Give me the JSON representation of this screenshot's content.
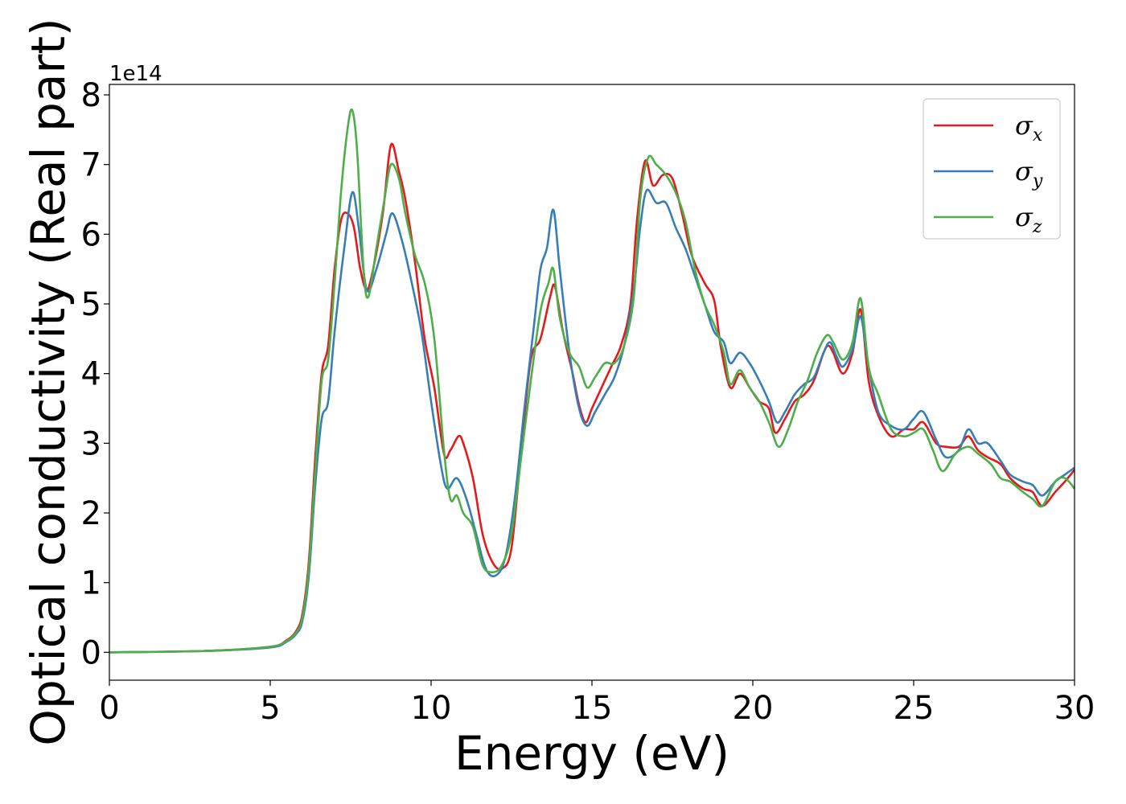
{
  "chart_data": {
    "type": "line",
    "title": "",
    "xlabel": "Energy (eV)",
    "ylabel": "Optical conductivity (Real part)",
    "y_offset_label": "1e14",
    "xlim": [
      0,
      30
    ],
    "ylim": [
      -0.4,
      8.15
    ],
    "xticks": [
      0,
      5,
      10,
      15,
      20,
      25,
      30
    ],
    "yticks": [
      0,
      1,
      2,
      3,
      4,
      5,
      6,
      7,
      8
    ],
    "grid": false,
    "legend_position": "top-right",
    "series": [
      {
        "name": "σx",
        "name_base": "σ",
        "name_sub": "x",
        "color": "#e41a1c",
        "points": [
          [
            0,
            0
          ],
          [
            3,
            0.02
          ],
          [
            5,
            0.08
          ],
          [
            5.5,
            0.17
          ],
          [
            5.8,
            0.3
          ],
          [
            6,
            0.55
          ],
          [
            6.2,
            1.3
          ],
          [
            6.4,
            2.8
          ],
          [
            6.6,
            4.0
          ],
          [
            6.8,
            4.4
          ],
          [
            7.0,
            5.5
          ],
          [
            7.2,
            6.2
          ],
          [
            7.4,
            6.3
          ],
          [
            7.6,
            6.1
          ],
          [
            7.8,
            5.5
          ],
          [
            8.0,
            5.2
          ],
          [
            8.2,
            5.5
          ],
          [
            8.5,
            6.3
          ],
          [
            8.75,
            7.28
          ],
          [
            9.0,
            6.9
          ],
          [
            9.2,
            6.5
          ],
          [
            9.5,
            5.6
          ],
          [
            9.8,
            4.5
          ],
          [
            10.1,
            3.8
          ],
          [
            10.4,
            2.85
          ],
          [
            10.6,
            2.9
          ],
          [
            10.85,
            3.1
          ],
          [
            11.0,
            3.0
          ],
          [
            11.3,
            2.5
          ],
          [
            11.6,
            1.7
          ],
          [
            11.9,
            1.3
          ],
          [
            12.2,
            1.2
          ],
          [
            12.5,
            1.5
          ],
          [
            12.8,
            2.9
          ],
          [
            13.1,
            4.2
          ],
          [
            13.4,
            4.5
          ],
          [
            13.7,
            5.1
          ],
          [
            13.85,
            5.25
          ],
          [
            14.1,
            4.6
          ],
          [
            14.4,
            4.0
          ],
          [
            14.6,
            3.55
          ],
          [
            14.8,
            3.3
          ],
          [
            15.0,
            3.5
          ],
          [
            15.3,
            3.8
          ],
          [
            15.6,
            4.1
          ],
          [
            15.9,
            4.4
          ],
          [
            16.2,
            5.0
          ],
          [
            16.4,
            6.2
          ],
          [
            16.65,
            7.05
          ],
          [
            16.9,
            6.7
          ],
          [
            17.2,
            6.85
          ],
          [
            17.5,
            6.8
          ],
          [
            17.8,
            6.3
          ],
          [
            18.1,
            5.7
          ],
          [
            18.5,
            5.3
          ],
          [
            18.8,
            5.05
          ],
          [
            19.0,
            4.4
          ],
          [
            19.3,
            3.8
          ],
          [
            19.6,
            4.0
          ],
          [
            19.9,
            3.8
          ],
          [
            20.2,
            3.6
          ],
          [
            20.5,
            3.5
          ],
          [
            20.7,
            3.15
          ],
          [
            21.0,
            3.35
          ],
          [
            21.3,
            3.6
          ],
          [
            21.6,
            3.7
          ],
          [
            21.9,
            3.9
          ],
          [
            22.2,
            4.3
          ],
          [
            22.35,
            4.4
          ],
          [
            22.5,
            4.3
          ],
          [
            22.8,
            4.0
          ],
          [
            23.1,
            4.3
          ],
          [
            23.35,
            4.92
          ],
          [
            23.6,
            3.9
          ],
          [
            23.9,
            3.4
          ],
          [
            24.3,
            3.1
          ],
          [
            24.7,
            3.2
          ],
          [
            25.0,
            3.2
          ],
          [
            25.3,
            3.3
          ],
          [
            25.7,
            3.0
          ],
          [
            26.0,
            2.95
          ],
          [
            26.4,
            2.95
          ],
          [
            26.7,
            3.1
          ],
          [
            27.0,
            2.9
          ],
          [
            27.3,
            2.8
          ],
          [
            27.7,
            2.7
          ],
          [
            28.0,
            2.5
          ],
          [
            28.4,
            2.35
          ],
          [
            28.7,
            2.3
          ],
          [
            29.0,
            2.1
          ],
          [
            29.4,
            2.3
          ],
          [
            29.7,
            2.45
          ],
          [
            30.0,
            2.62
          ]
        ]
      },
      {
        "name": "σy",
        "name_base": "σ",
        "name_sub": "y",
        "color": "#377eb8",
        "points": [
          [
            0,
            0
          ],
          [
            3,
            0.02
          ],
          [
            5,
            0.07
          ],
          [
            5.5,
            0.15
          ],
          [
            5.8,
            0.26
          ],
          [
            6,
            0.45
          ],
          [
            6.2,
            1.1
          ],
          [
            6.4,
            2.4
          ],
          [
            6.6,
            3.35
          ],
          [
            6.8,
            3.6
          ],
          [
            7.0,
            4.6
          ],
          [
            7.3,
            5.8
          ],
          [
            7.55,
            6.6
          ],
          [
            7.75,
            6.1
          ],
          [
            8.0,
            5.2
          ],
          [
            8.3,
            5.5
          ],
          [
            8.6,
            6.0
          ],
          [
            8.8,
            6.3
          ],
          [
            9.1,
            5.9
          ],
          [
            9.4,
            5.3
          ],
          [
            9.7,
            4.6
          ],
          [
            10.0,
            3.6
          ],
          [
            10.3,
            2.7
          ],
          [
            10.5,
            2.35
          ],
          [
            10.8,
            2.5
          ],
          [
            11.1,
            2.2
          ],
          [
            11.4,
            1.7
          ],
          [
            11.7,
            1.2
          ],
          [
            12.0,
            1.1
          ],
          [
            12.3,
            1.35
          ],
          [
            12.6,
            2.2
          ],
          [
            12.9,
            3.5
          ],
          [
            13.2,
            4.7
          ],
          [
            13.4,
            5.5
          ],
          [
            13.6,
            5.8
          ],
          [
            13.8,
            6.35
          ],
          [
            14.0,
            5.5
          ],
          [
            14.3,
            4.3
          ],
          [
            14.6,
            3.5
          ],
          [
            14.85,
            3.25
          ],
          [
            15.1,
            3.45
          ],
          [
            15.4,
            3.7
          ],
          [
            15.7,
            3.95
          ],
          [
            16.0,
            4.4
          ],
          [
            16.3,
            5.2
          ],
          [
            16.5,
            6.1
          ],
          [
            16.7,
            6.63
          ],
          [
            17.0,
            6.45
          ],
          [
            17.3,
            6.45
          ],
          [
            17.6,
            6.1
          ],
          [
            17.9,
            5.8
          ],
          [
            18.2,
            5.4
          ],
          [
            18.5,
            5.0
          ],
          [
            18.8,
            4.6
          ],
          [
            19.1,
            4.45
          ],
          [
            19.3,
            4.15
          ],
          [
            19.6,
            4.3
          ],
          [
            19.9,
            4.15
          ],
          [
            20.2,
            3.9
          ],
          [
            20.5,
            3.6
          ],
          [
            20.75,
            3.3
          ],
          [
            21.0,
            3.45
          ],
          [
            21.3,
            3.7
          ],
          [
            21.6,
            3.85
          ],
          [
            21.9,
            3.95
          ],
          [
            22.2,
            4.3
          ],
          [
            22.4,
            4.45
          ],
          [
            22.6,
            4.25
          ],
          [
            22.8,
            4.1
          ],
          [
            23.1,
            4.35
          ],
          [
            23.35,
            4.82
          ],
          [
            23.6,
            4.1
          ],
          [
            23.9,
            3.45
          ],
          [
            24.3,
            3.25
          ],
          [
            24.7,
            3.2
          ],
          [
            25.0,
            3.35
          ],
          [
            25.3,
            3.45
          ],
          [
            25.7,
            3.05
          ],
          [
            26.0,
            2.8
          ],
          [
            26.4,
            2.9
          ],
          [
            26.7,
            3.2
          ],
          [
            27.0,
            3.0
          ],
          [
            27.3,
            3.0
          ],
          [
            27.7,
            2.75
          ],
          [
            28.0,
            2.55
          ],
          [
            28.4,
            2.45
          ],
          [
            28.7,
            2.4
          ],
          [
            29.0,
            2.25
          ],
          [
            29.4,
            2.45
          ],
          [
            29.7,
            2.55
          ],
          [
            30.0,
            2.65
          ]
        ]
      },
      {
        "name": "σz",
        "name_base": "σ",
        "name_sub": "z",
        "color": "#4daf4a",
        "points": [
          [
            0,
            0
          ],
          [
            3,
            0.02
          ],
          [
            5,
            0.08
          ],
          [
            5.5,
            0.16
          ],
          [
            5.8,
            0.28
          ],
          [
            6,
            0.5
          ],
          [
            6.2,
            1.2
          ],
          [
            6.4,
            2.6
          ],
          [
            6.6,
            3.9
          ],
          [
            6.8,
            4.2
          ],
          [
            7.0,
            5.3
          ],
          [
            7.2,
            6.6
          ],
          [
            7.4,
            7.5
          ],
          [
            7.55,
            7.78
          ],
          [
            7.7,
            7.2
          ],
          [
            7.9,
            5.5
          ],
          [
            8.05,
            5.1
          ],
          [
            8.3,
            5.8
          ],
          [
            8.55,
            6.5
          ],
          [
            8.75,
            7.0
          ],
          [
            9.0,
            6.8
          ],
          [
            9.2,
            6.3
          ],
          [
            9.5,
            5.7
          ],
          [
            9.8,
            5.3
          ],
          [
            10.1,
            4.5
          ],
          [
            10.4,
            2.9
          ],
          [
            10.6,
            2.2
          ],
          [
            10.8,
            2.25
          ],
          [
            11.0,
            2.0
          ],
          [
            11.3,
            1.8
          ],
          [
            11.6,
            1.25
          ],
          [
            11.9,
            1.15
          ],
          [
            12.2,
            1.25
          ],
          [
            12.5,
            1.7
          ],
          [
            12.8,
            2.8
          ],
          [
            13.1,
            3.9
          ],
          [
            13.4,
            4.9
          ],
          [
            13.65,
            5.3
          ],
          [
            13.8,
            5.5
          ],
          [
            14.0,
            4.8
          ],
          [
            14.3,
            4.3
          ],
          [
            14.6,
            4.1
          ],
          [
            14.85,
            3.8
          ],
          [
            15.1,
            3.95
          ],
          [
            15.4,
            4.15
          ],
          [
            15.7,
            4.15
          ],
          [
            16.0,
            4.4
          ],
          [
            16.3,
            5.1
          ],
          [
            16.5,
            6.5
          ],
          [
            16.75,
            7.1
          ],
          [
            17.0,
            7.0
          ],
          [
            17.3,
            6.85
          ],
          [
            17.6,
            6.6
          ],
          [
            17.9,
            6.2
          ],
          [
            18.2,
            5.5
          ],
          [
            18.5,
            5.0
          ],
          [
            18.8,
            4.7
          ],
          [
            19.1,
            4.3
          ],
          [
            19.3,
            3.85
          ],
          [
            19.6,
            4.05
          ],
          [
            19.9,
            3.8
          ],
          [
            20.2,
            3.6
          ],
          [
            20.5,
            3.3
          ],
          [
            20.8,
            2.95
          ],
          [
            21.1,
            3.2
          ],
          [
            21.4,
            3.6
          ],
          [
            21.7,
            3.9
          ],
          [
            22.0,
            4.3
          ],
          [
            22.3,
            4.55
          ],
          [
            22.5,
            4.45
          ],
          [
            22.8,
            4.2
          ],
          [
            23.1,
            4.45
          ],
          [
            23.35,
            5.08
          ],
          [
            23.6,
            4.1
          ],
          [
            23.9,
            3.7
          ],
          [
            24.3,
            3.2
          ],
          [
            24.7,
            3.1
          ],
          [
            25.0,
            3.15
          ],
          [
            25.3,
            3.2
          ],
          [
            25.6,
            2.9
          ],
          [
            25.9,
            2.6
          ],
          [
            26.3,
            2.85
          ],
          [
            26.7,
            2.95
          ],
          [
            27.0,
            2.85
          ],
          [
            27.4,
            2.7
          ],
          [
            27.7,
            2.5
          ],
          [
            28.0,
            2.45
          ],
          [
            28.4,
            2.3
          ],
          [
            28.7,
            2.2
          ],
          [
            29.0,
            2.1
          ],
          [
            29.4,
            2.45
          ],
          [
            29.7,
            2.5
          ],
          [
            30.0,
            2.35
          ]
        ]
      }
    ]
  }
}
